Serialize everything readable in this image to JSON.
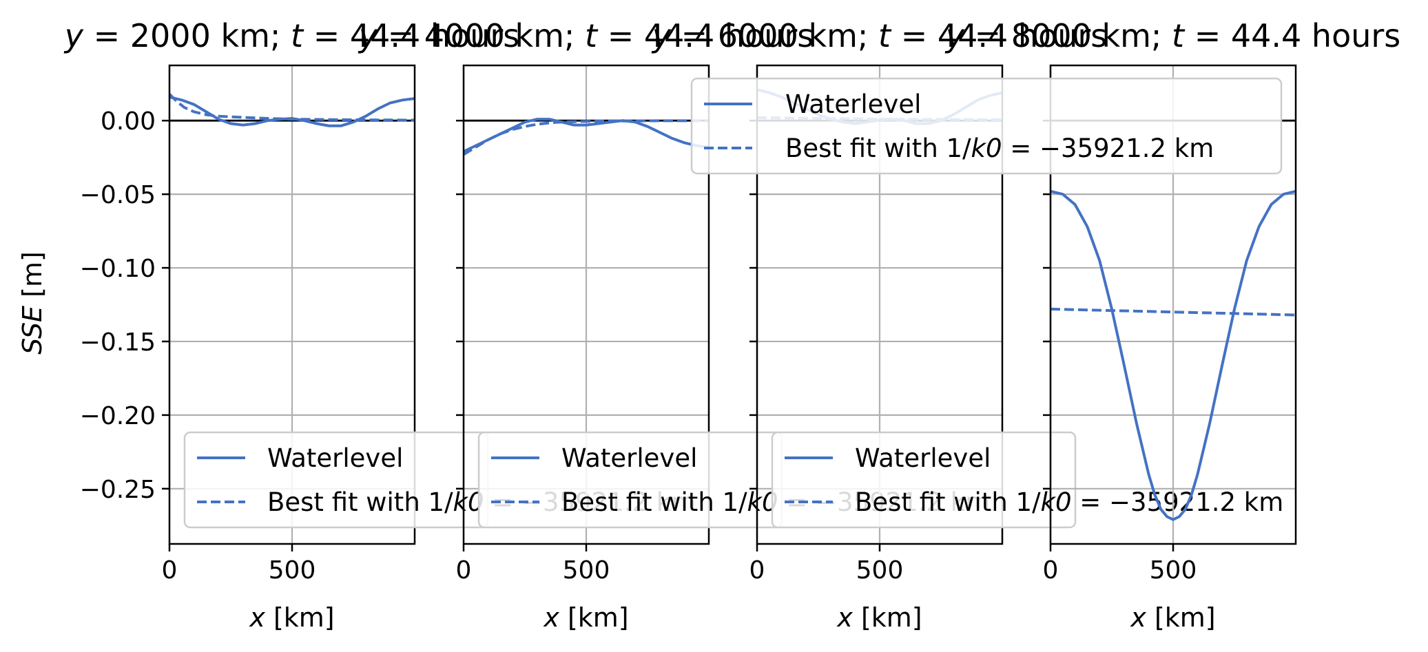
{
  "figure": {
    "ylabel_italic": "SSE",
    "ylabel_unit": " [m]",
    "xlabel_italic": "x",
    "xlabel_unit": " [km]"
  },
  "legend_main": {
    "waterlevel": "Waterlevel",
    "bestfit": "Best fit with 1/k0 = −35921.2 km"
  },
  "legend_panels": {
    "waterlevel": "Waterlevel",
    "bestfit": "Best fit with 1/k0 = −35921.2 km"
  },
  "colors": {
    "series": "#4472c4",
    "zero_line": "#000000",
    "grid": "#b0b0b0",
    "legend_frame": "#cccccc"
  },
  "chart_data": [
    {
      "type": "line",
      "title": "y = 2000 km; t = 44.4 hours",
      "xlim": [
        0,
        1000
      ],
      "ylim": [
        -0.2875,
        0.0375
      ],
      "xticks": [
        0,
        500
      ],
      "yticks": [
        0.0,
        -0.05,
        -0.1,
        -0.15,
        -0.2,
        -0.25
      ],
      "ytick_labels": [
        "0.00",
        "−0.05",
        "−0.10",
        "−0.15",
        "−0.20",
        "−0.25"
      ],
      "series": [
        {
          "name": "Waterlevel",
          "style": "solid",
          "x": [
            0,
            50,
            100,
            150,
            200,
            250,
            300,
            350,
            400,
            450,
            500,
            550,
            600,
            650,
            700,
            750,
            800,
            850,
            900,
            950,
            1000
          ],
          "y": [
            0.016,
            0.014,
            0.011,
            0.006,
            0.001,
            -0.002,
            -0.003,
            -0.002,
            0.0,
            0.001,
            0.0015,
            0.0,
            -0.002,
            -0.0035,
            -0.0035,
            -0.001,
            0.003,
            0.008,
            0.012,
            0.014,
            0.015
          ]
        },
        {
          "name": "Best fit with 1/k0 = −35921.2 km",
          "style": "dashed",
          "x": [
            0,
            30,
            60,
            100,
            150,
            200,
            300,
            400,
            500,
            600,
            700,
            800,
            900,
            1000
          ],
          "y": [
            0.018,
            0.013,
            0.009,
            0.006,
            0.004,
            0.003,
            0.0022,
            0.0015,
            0.001,
            0.0008,
            0.0006,
            0.0005,
            0.0004,
            0.0003
          ]
        }
      ]
    },
    {
      "type": "line",
      "title": "y = 4000 km; t = 44.4 hours",
      "xlim": [
        0,
        1000
      ],
      "ylim": [
        -0.2875,
        0.0375
      ],
      "xticks": [
        0,
        500
      ],
      "yticks": [
        0.0,
        -0.05,
        -0.1,
        -0.15,
        -0.2,
        -0.25
      ],
      "series": [
        {
          "name": "Waterlevel",
          "style": "solid",
          "x": [
            0,
            50,
            100,
            150,
            200,
            250,
            300,
            350,
            400,
            450,
            500,
            550,
            600,
            650,
            700,
            750,
            800,
            850,
            900,
            950,
            1000
          ],
          "y": [
            -0.021,
            -0.017,
            -0.013,
            -0.009,
            -0.005,
            -0.001,
            0.001,
            0.001,
            -0.001,
            -0.003,
            -0.003,
            -0.002,
            -0.001,
            0.0,
            -0.001,
            -0.004,
            -0.008,
            -0.012,
            -0.015,
            -0.017,
            -0.018
          ]
        },
        {
          "name": "Best fit with 1/k0 = −35921.2 km",
          "style": "dashed",
          "x": [
            0,
            50,
            100,
            150,
            200,
            250,
            300,
            350,
            400,
            450,
            500,
            600,
            700,
            800,
            900,
            1000
          ],
          "y": [
            -0.023,
            -0.018,
            -0.013,
            -0.009,
            -0.006,
            -0.004,
            -0.0025,
            -0.0015,
            -0.001,
            -0.0007,
            -0.0005,
            -0.0003,
            -0.0002,
            -0.0001,
            -0.0001,
            0.0
          ]
        }
      ]
    },
    {
      "type": "line",
      "title": "y = 6000 km; t = 44.4 hours",
      "xlim": [
        0,
        1000
      ],
      "ylim": [
        -0.2875,
        0.0375
      ],
      "xticks": [
        0,
        500
      ],
      "yticks": [
        0.0,
        -0.05,
        -0.1,
        -0.15,
        -0.2,
        -0.25
      ],
      "series": [
        {
          "name": "Waterlevel",
          "style": "solid",
          "x": [
            0,
            50,
            100,
            150,
            200,
            250,
            300,
            350,
            400,
            450,
            500,
            550,
            600,
            650,
            700,
            750,
            800,
            850,
            900,
            950,
            1000
          ],
          "y": [
            0.021,
            0.019,
            0.016,
            0.012,
            0.008,
            0.004,
            0.001,
            -0.001,
            -0.002,
            -0.001,
            0.0005,
            0.001,
            0.0,
            -0.002,
            -0.002,
            0.0,
            0.004,
            0.009,
            0.014,
            0.017,
            0.019
          ]
        },
        {
          "name": "Best fit with 1/k0 = −35921.2 km",
          "style": "dashed",
          "x": [
            0,
            100,
            200,
            300,
            400,
            500,
            600,
            700,
            800,
            900,
            1000
          ],
          "y": [
            0.002,
            0.0018,
            0.0016,
            0.0014,
            0.0012,
            0.001,
            0.0009,
            0.0008,
            0.0007,
            0.0006,
            0.0005
          ]
        }
      ]
    },
    {
      "type": "line",
      "title": "y = 8000 km; t = 44.4 hours",
      "xlim": [
        0,
        1000
      ],
      "ylim": [
        -0.2875,
        0.0375
      ],
      "xticks": [
        0,
        500
      ],
      "yticks": [
        0.0,
        -0.05,
        -0.1,
        -0.15,
        -0.2,
        -0.25
      ],
      "series": [
        {
          "name": "Waterlevel",
          "style": "solid",
          "x": [
            0,
            50,
            100,
            150,
            200,
            250,
            300,
            350,
            400,
            425,
            450,
            475,
            500,
            525,
            550,
            575,
            600,
            650,
            700,
            750,
            800,
            850,
            900,
            950,
            1000
          ],
          "y": [
            -0.048,
            -0.05,
            -0.057,
            -0.072,
            -0.095,
            -0.128,
            -0.166,
            -0.205,
            -0.24,
            -0.254,
            -0.264,
            -0.269,
            -0.271,
            -0.269,
            -0.264,
            -0.254,
            -0.24,
            -0.205,
            -0.166,
            -0.128,
            -0.095,
            -0.072,
            -0.057,
            -0.05,
            -0.048
          ]
        },
        {
          "name": "Best fit with 1/k0 = −35921.2 km",
          "style": "dashed",
          "x": [
            0,
            1000
          ],
          "y": [
            -0.128,
            -0.132
          ]
        }
      ]
    }
  ]
}
